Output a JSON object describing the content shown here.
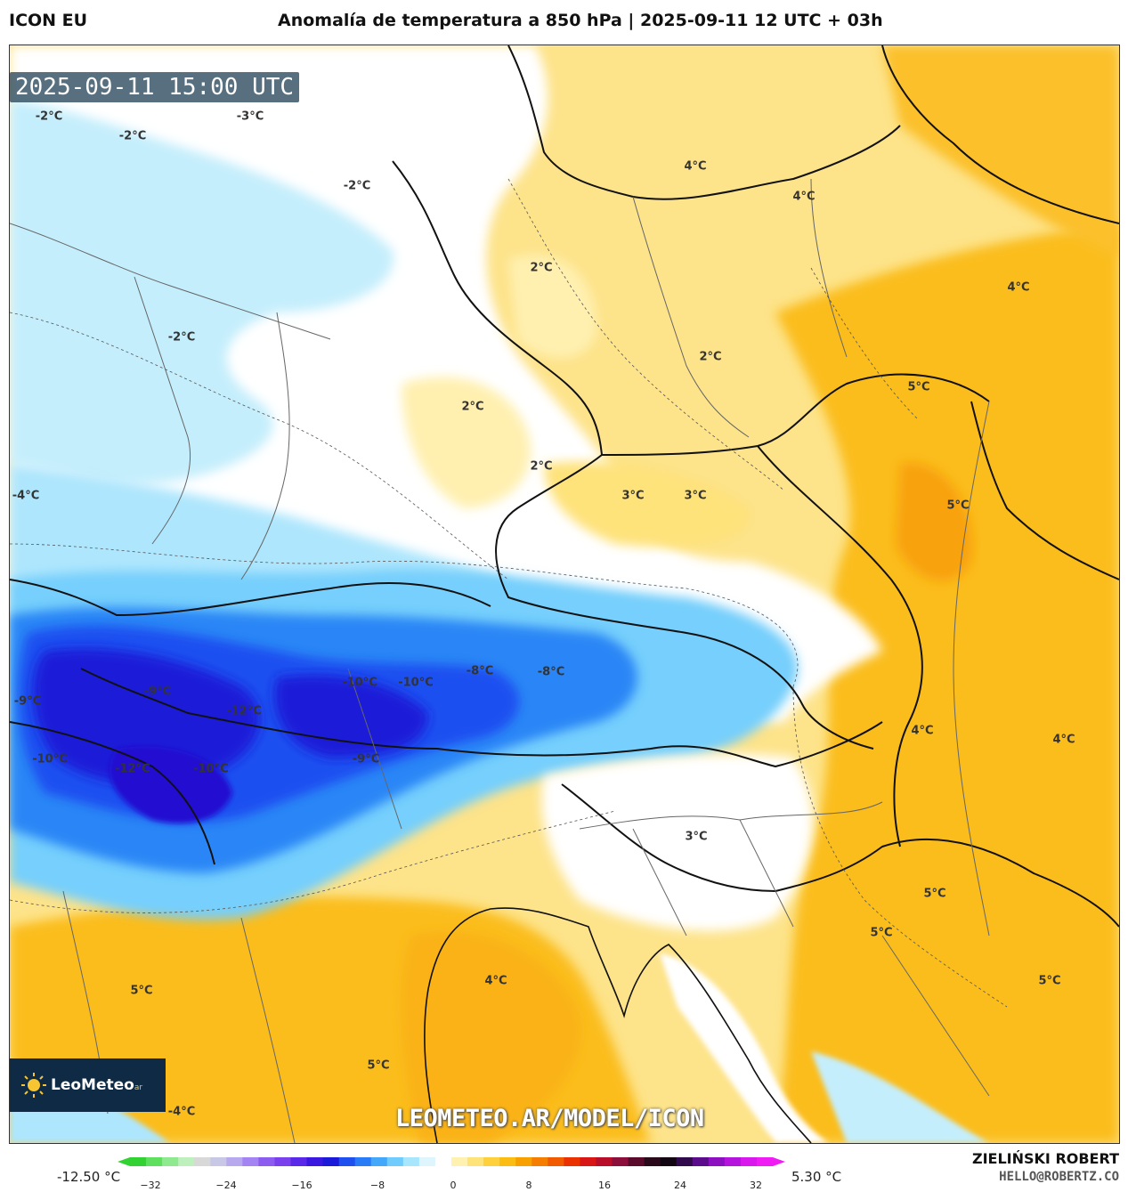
{
  "header": {
    "model": "ICON EU",
    "title": "Anomalía de temperatura a 850 hPa | 2025-09-11 12 UTC + 03h"
  },
  "map": {
    "valid_time": "2025-09-11 15:00 UTC",
    "watermark_url": "LEOMETEO.AR/MODEL/ICON",
    "logo_text": "LeoMeteo",
    "logo_suffix": "ar",
    "labels": [
      "-2°C",
      "-3°C",
      "-2°C",
      "-2°C",
      "-2°C",
      "-4°C",
      "-9°C",
      "-9°C",
      "-12°C",
      "-10°C",
      "-10°C",
      "-10°C",
      "-12°C",
      "-10°C",
      "-8°C",
      "-8°C",
      "-9°C",
      "-4°C",
      "4°C",
      "4°C",
      "2°C",
      "2°C",
      "2°C",
      "2°C",
      "3°C",
      "3°C",
      "4°C",
      "5°C",
      "5°C",
      "4°C",
      "4°C",
      "3°C",
      "5°C",
      "5°C",
      "5°C",
      "4°C",
      "5°C",
      "5°C"
    ]
  },
  "colorbar": {
    "min_value": "-12.50 °C",
    "max_value": "5.30 °C",
    "ticks": [
      "−32",
      "−24",
      "−16",
      "−8",
      "0",
      "8",
      "16",
      "24",
      "32"
    ],
    "colors": [
      "#32d232",
      "#5ee05e",
      "#8fea8f",
      "#bdf0bd",
      "#d8d8d8",
      "#c8c8e6",
      "#b8a8ee",
      "#a484f2",
      "#8c5cf0",
      "#7a40ee",
      "#5a28e8",
      "#3a18e0",
      "#1a1ad8",
      "#1e50f0",
      "#2a7cf6",
      "#44a8fa",
      "#70ccfc",
      "#a8e6fe",
      "#dff5fe",
      "#ffffff",
      "#fff2b0",
      "#fee27a",
      "#fdd03c",
      "#fbbc14",
      "#f8a000",
      "#f57e00",
      "#f25a00",
      "#ea3200",
      "#d81616",
      "#b80e2a",
      "#8c0e3a",
      "#5a0a2a",
      "#2a0a1a",
      "#120612",
      "#300a4a",
      "#5a0c8a",
      "#8c10c0",
      "#b414dc",
      "#d818ec",
      "#f01cf4"
    ]
  },
  "author": {
    "name": "ZIELIŃSKI ROBERT",
    "email": "HELLO@ROBERTZ.CO"
  }
}
